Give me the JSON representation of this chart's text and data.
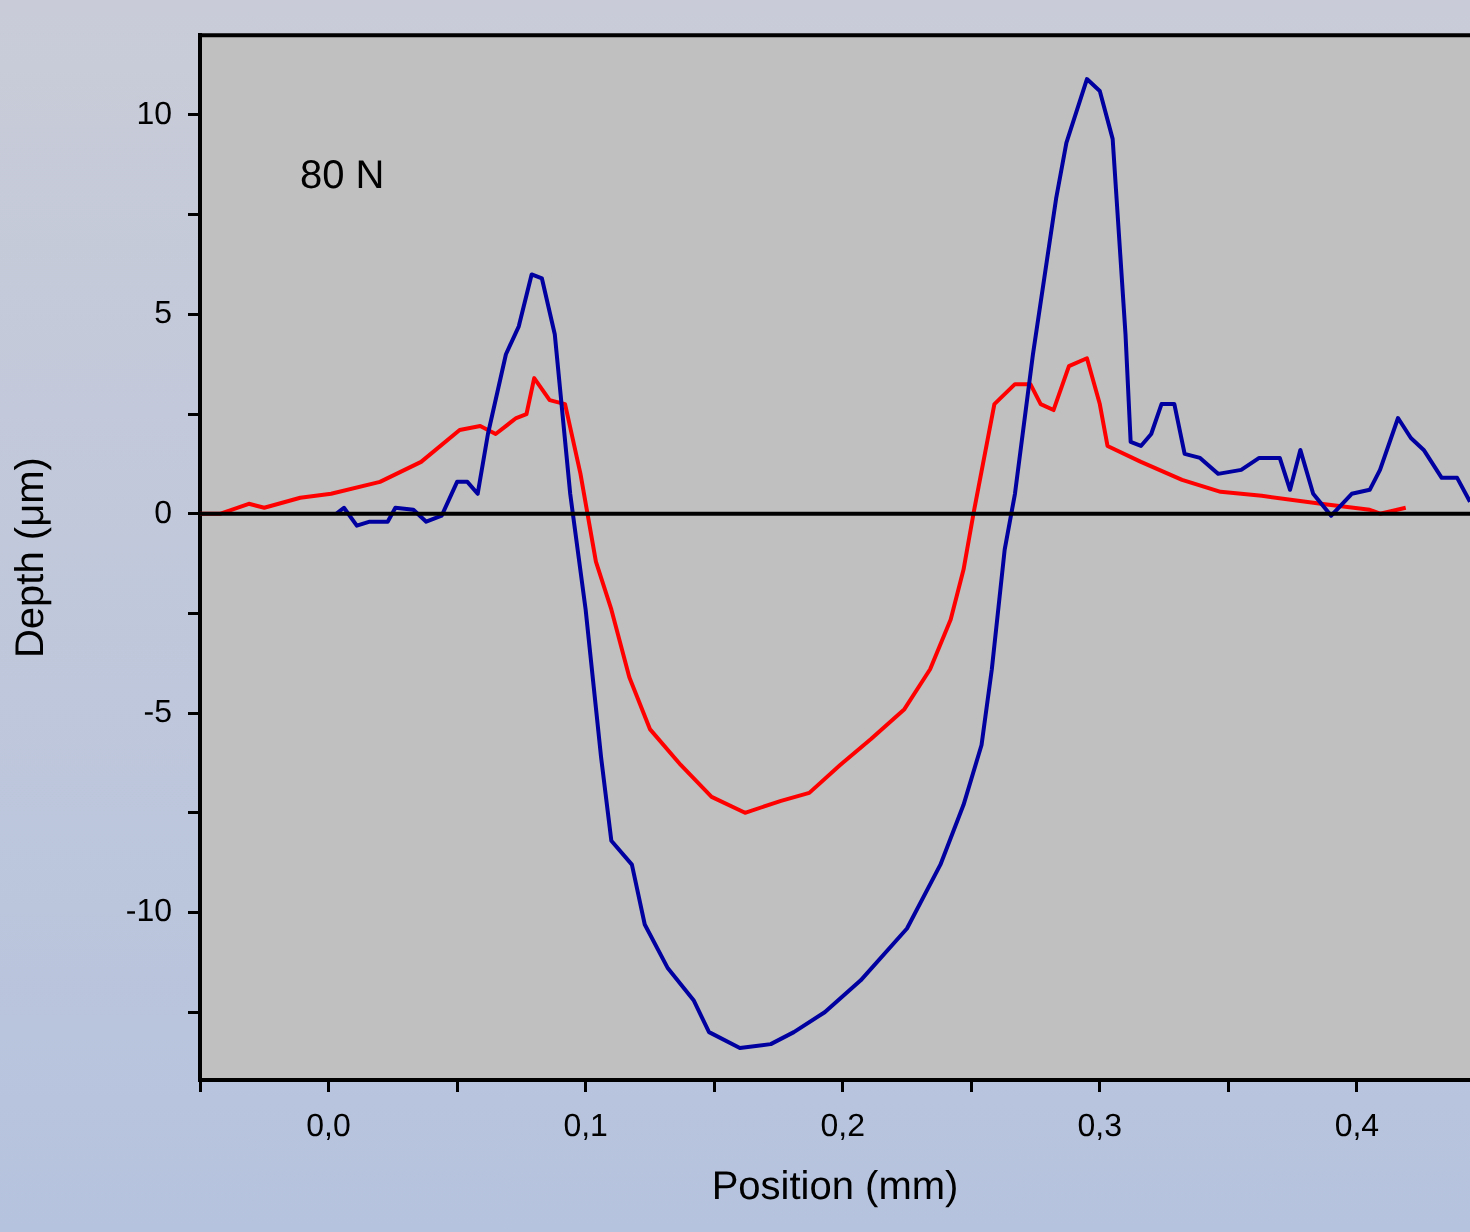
{
  "chart_data": {
    "type": "line",
    "xlabel": "Position (mm)",
    "ylabel": "Depth (μm)",
    "annotations": [
      "80 N"
    ],
    "xlim": [
      -0.05,
      0.444
    ],
    "ylim": [
      -14.2,
      12
    ],
    "xticks": [
      {
        "value": -0.05,
        "label": null
      },
      {
        "value": 0,
        "label": "0,0"
      },
      {
        "value": 0.05,
        "label": null
      },
      {
        "value": 0.1,
        "label": "0,1"
      },
      {
        "value": 0.15,
        "label": null
      },
      {
        "value": 0.2,
        "label": "0,2"
      },
      {
        "value": 0.25,
        "label": null
      },
      {
        "value": 0.3,
        "label": "0,3"
      },
      {
        "value": 0.35,
        "label": null
      },
      {
        "value": 0.4,
        "label": "0,4"
      }
    ],
    "yticks": [
      {
        "value": -12.5,
        "label": null
      },
      -10,
      {
        "value": -7.5,
        "label": null
      },
      -5,
      {
        "value": -2.5,
        "label": null
      },
      0,
      {
        "value": 2.5,
        "label": null
      },
      5,
      {
        "value": 7.5,
        "label": null
      },
      10
    ],
    "grid": false,
    "legend": false,
    "marker": "none",
    "line_style": "solid",
    "ref_lines": [
      {
        "axis": "y",
        "value": 0,
        "label": null,
        "color": "#000000"
      }
    ],
    "series": [
      {
        "color": "#0000a0",
        "x": [
          0.003,
          0.006,
          0.011,
          0.016,
          0.023,
          0.026,
          0.033,
          0.038,
          0.044,
          0.05,
          0.054,
          0.058,
          0.062,
          0.069,
          0.074,
          0.079,
          0.083,
          0.088,
          0.094,
          0.1,
          0.106,
          0.11,
          0.118,
          0.123,
          0.132,
          0.142,
          0.148,
          0.16,
          0.172,
          0.181,
          0.193,
          0.207,
          0.225,
          0.238,
          0.247,
          0.254,
          0.258,
          0.263,
          0.267,
          0.274,
          0.283,
          0.287,
          0.295,
          0.3,
          0.305,
          0.31,
          0.312,
          0.316,
          0.32,
          0.324,
          0.329,
          0.333,
          0.339,
          0.346,
          0.355,
          0.362,
          0.37,
          0.374,
          0.378,
          0.383,
          0.39,
          0.398,
          0.405,
          0.409,
          0.416,
          0.421,
          0.426,
          0.433,
          0.439,
          0.444
        ],
        "values": [
          0,
          0.15,
          -0.3,
          -0.2,
          -0.2,
          0.15,
          0.1,
          -0.2,
          -0.05,
          0.8,
          0.8,
          0.5,
          2.0,
          4.0,
          4.7,
          6.0,
          5.9,
          4.5,
          0.5,
          -2.4,
          -6.1,
          -8.2,
          -8.8,
          -10.3,
          -11.4,
          -12.2,
          -13.0,
          -13.4,
          -13.3,
          -13.0,
          -12.5,
          -11.7,
          -10.4,
          -8.8,
          -7.3,
          -5.8,
          -3.9,
          -0.9,
          0.5,
          4.0,
          7.9,
          9.3,
          10.9,
          10.6,
          9.4,
          4.5,
          1.8,
          1.7,
          2.0,
          2.75,
          2.75,
          1.5,
          1.4,
          1.0,
          1.1,
          1.4,
          1.4,
          0.6,
          1.6,
          0.5,
          -0.05,
          0.5,
          0.6,
          1.1,
          2.4,
          1.9,
          1.6,
          0.9,
          0.9,
          0.3
        ]
      },
      {
        "color": "#ff0000",
        "x": [
          -0.05,
          -0.042,
          -0.031,
          -0.025,
          -0.011,
          0.001,
          0.02,
          0.036,
          0.051,
          0.059,
          0.065,
          0.073,
          0.077,
          0.08,
          0.086,
          0.092,
          0.098,
          0.104,
          0.11,
          0.117,
          0.125,
          0.137,
          0.149,
          0.162,
          0.176,
          0.187,
          0.199,
          0.211,
          0.224,
          0.234,
          0.242,
          0.247,
          0.251,
          0.259,
          0.267,
          0.273,
          0.277,
          0.282,
          0.288,
          0.295,
          0.3,
          0.303,
          0.316,
          0.332,
          0.347,
          0.363,
          0.386,
          0.405,
          0.409,
          0.419
        ],
        "values": [
          0,
          0,
          0.25,
          0.15,
          0.4,
          0.5,
          0.8,
          1.3,
          2.1,
          2.2,
          2.0,
          2.4,
          2.5,
          3.4,
          2.85,
          2.75,
          1.0,
          -1.2,
          -2.4,
          -4.1,
          -5.4,
          -6.3,
          -7.1,
          -7.5,
          -7.2,
          -7.0,
          -6.3,
          -5.65,
          -4.9,
          -3.9,
          -2.65,
          -1.4,
          0.05,
          2.75,
          3.25,
          3.25,
          2.75,
          2.6,
          3.7,
          3.9,
          2.75,
          1.7,
          1.3,
          0.85,
          0.55,
          0.45,
          0.25,
          0.1,
          0,
          0.15
        ]
      }
    ]
  }
}
